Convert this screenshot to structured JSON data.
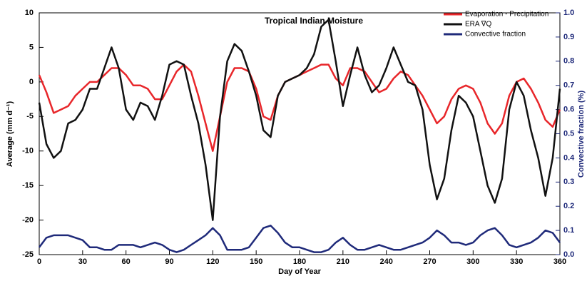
{
  "chart_data": {
    "type": "line",
    "title": "Tropical Indian Moisture",
    "xlabel": "Day of Year",
    "ylabel": "Average (mm d⁻¹)",
    "y2label": "Convective fraction (%)",
    "x": [
      0,
      5,
      10,
      15,
      20,
      25,
      30,
      35,
      40,
      45,
      50,
      55,
      60,
      65,
      70,
      75,
      80,
      85,
      90,
      95,
      100,
      105,
      110,
      115,
      120,
      125,
      130,
      135,
      140,
      145,
      150,
      155,
      160,
      165,
      170,
      175,
      180,
      185,
      190,
      195,
      200,
      205,
      210,
      215,
      220,
      225,
      230,
      235,
      240,
      245,
      250,
      255,
      260,
      265,
      270,
      275,
      280,
      285,
      290,
      295,
      300,
      305,
      310,
      315,
      320,
      325,
      330,
      335,
      340,
      345,
      350,
      355,
      360
    ],
    "xlim": [
      0,
      360
    ],
    "xticks": [
      0,
      30,
      60,
      90,
      120,
      150,
      180,
      210,
      240,
      270,
      300,
      330,
      360
    ],
    "ylim": [
      -25,
      10
    ],
    "yticks": [
      -25,
      -20,
      -15,
      -10,
      -5,
      0,
      5,
      10
    ],
    "y2lim": [
      0,
      1
    ],
    "y2ticks": [
      {
        "value": 0,
        "label": "0.0"
      },
      0.1,
      0.2,
      0.3,
      0.4,
      0.5,
      0.6,
      0.7,
      0.8,
      0.9,
      {
        "value": 1,
        "label": "1.0"
      }
    ],
    "legend": "upper right",
    "series": [
      {
        "name": "Evaporation - Precipitation",
        "color": "#e8262a",
        "values": [
          1,
          -1.5,
          -4.5,
          -4,
          -3.5,
          -2,
          -1,
          0,
          0,
          1,
          2,
          2,
          1,
          -0.5,
          -0.5,
          -1,
          -2.5,
          -2.5,
          -0.5,
          1.5,
          2.5,
          1.5,
          -2,
          -6,
          -10,
          -5,
          0,
          2,
          2,
          1.5,
          -1,
          -5,
          -5.5,
          -2,
          0,
          0.5,
          1,
          1.5,
          2,
          2.5,
          2.5,
          0.5,
          -0.5,
          2,
          2,
          1.5,
          0,
          -1.5,
          -1,
          0.5,
          1.5,
          1,
          -0.5,
          -2,
          -4,
          -6,
          -5,
          -2.5,
          -1,
          -0.5,
          -1,
          -3,
          -6,
          -7.5,
          -6,
          -2,
          0,
          0.5,
          -1,
          -3,
          -5.5,
          -6.5,
          -4
        ]
      },
      {
        "name": "ERA ∇Q",
        "color": "#111111",
        "values": [
          -3,
          -9,
          -11,
          -10,
          -6,
          -5.5,
          -4,
          -1,
          -1,
          2,
          5,
          2,
          -4,
          -5.5,
          -3,
          -3.5,
          -5.5,
          -2,
          2.5,
          3,
          2.5,
          -2,
          -6,
          -12,
          -20,
          -5,
          3,
          5.5,
          4.5,
          1.5,
          -2,
          -7,
          -8,
          -2,
          0,
          0.5,
          1,
          2,
          4,
          8,
          9,
          3,
          -3.5,
          1,
          5,
          1,
          -1.5,
          -0.5,
          2,
          5,
          2.5,
          0,
          -0.5,
          -4,
          -12,
          -17,
          -14,
          -7,
          -2,
          -3,
          -5,
          -10,
          -15,
          -17.5,
          -14,
          -4,
          0,
          -2,
          -7,
          -11,
          -16.5,
          -11,
          -1
        ]
      },
      {
        "name": "Convective fraction",
        "color": "#1f2a7a",
        "axis": "y2",
        "values": [
          0.03,
          0.07,
          0.08,
          0.08,
          0.08,
          0.07,
          0.06,
          0.03,
          0.03,
          0.02,
          0.02,
          0.04,
          0.04,
          0.04,
          0.03,
          0.04,
          0.05,
          0.04,
          0.02,
          0.01,
          0.02,
          0.04,
          0.06,
          0.08,
          0.11,
          0.08,
          0.02,
          0.02,
          0.02,
          0.03,
          0.07,
          0.11,
          0.12,
          0.09,
          0.05,
          0.03,
          0.03,
          0.02,
          0.01,
          0.01,
          0.02,
          0.05,
          0.07,
          0.04,
          0.02,
          0.02,
          0.03,
          0.04,
          0.03,
          0.02,
          0.02,
          0.03,
          0.04,
          0.05,
          0.07,
          0.1,
          0.08,
          0.05,
          0.05,
          0.04,
          0.05,
          0.08,
          0.1,
          0.11,
          0.08,
          0.04,
          0.03,
          0.04,
          0.05,
          0.07,
          0.1,
          0.09,
          0.05
        ]
      }
    ]
  }
}
